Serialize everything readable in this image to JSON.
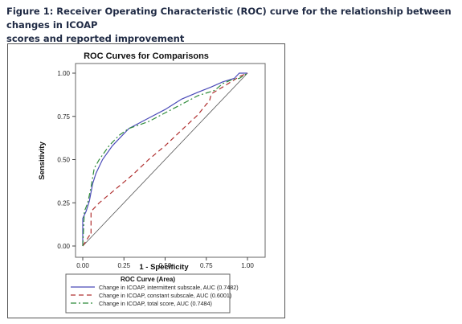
{
  "caption": {
    "line1": "Figure 1: Receiver Operating Characteristic (ROC) curve for the relationship between changes in ICOAP",
    "line2": "scores and reported improvement"
  },
  "chart_data": {
    "type": "line",
    "title": "ROC Curves for Comparisons",
    "xlabel": "1 - Specificity",
    "ylabel": "Sensitivity",
    "xlim": [
      0,
      1
    ],
    "ylim": [
      0,
      1
    ],
    "xticks": [
      "0.00",
      "0.25",
      "0.50",
      "0.75",
      "1.00"
    ],
    "yticks": [
      "0.00",
      "0.25",
      "0.50",
      "0.75",
      "1.00"
    ],
    "grid": false,
    "reference_line": true,
    "legend": {
      "title": "ROC Curve (Area)",
      "placement": "bottom"
    },
    "series": [
      {
        "name": "Change in ICOAP, intermittent subscale, AUC (0.7482)",
        "color": "#4b4bb8",
        "dash": "solid",
        "x": [
          0,
          0,
          0.02,
          0.04,
          0.06,
          0.08,
          0.12,
          0.18,
          0.22,
          0.28,
          0.4,
          0.5,
          0.6,
          0.7,
          0.78,
          0.85,
          0.92,
          0.95,
          1.0
        ],
        "y": [
          0,
          0.16,
          0.2,
          0.26,
          0.36,
          0.42,
          0.5,
          0.58,
          0.62,
          0.68,
          0.74,
          0.79,
          0.85,
          0.89,
          0.92,
          0.95,
          0.97,
          1.0,
          1.0
        ]
      },
      {
        "name": "Change in ICOAP, constant subscale, AUC  (0.6001)",
        "color": "#b03030",
        "dash": "dashed",
        "x": [
          0,
          0.04,
          0.05,
          0.05,
          0.1,
          0.2,
          0.3,
          0.4,
          0.5,
          0.6,
          0.7,
          0.75,
          0.77,
          0.78,
          0.85,
          0.9,
          0.95,
          1.0
        ],
        "y": [
          0,
          0.06,
          0.06,
          0.2,
          0.25,
          0.33,
          0.41,
          0.5,
          0.58,
          0.67,
          0.76,
          0.82,
          0.84,
          0.88,
          0.92,
          0.95,
          0.98,
          1.0
        ]
      },
      {
        "name": "Change in ICOAP, total score, AUC  (0.7484)",
        "color": "#2e8b3a",
        "dash": "dashdot",
        "x": [
          0,
          0.01,
          0.03,
          0.05,
          0.07,
          0.1,
          0.16,
          0.22,
          0.28,
          0.4,
          0.5,
          0.6,
          0.7,
          0.8,
          0.85,
          0.9,
          0.95,
          1.0
        ],
        "y": [
          0,
          0.2,
          0.25,
          0.34,
          0.45,
          0.5,
          0.58,
          0.64,
          0.68,
          0.72,
          0.77,
          0.82,
          0.87,
          0.9,
          0.94,
          0.96,
          0.97,
          1.0
        ]
      }
    ]
  }
}
